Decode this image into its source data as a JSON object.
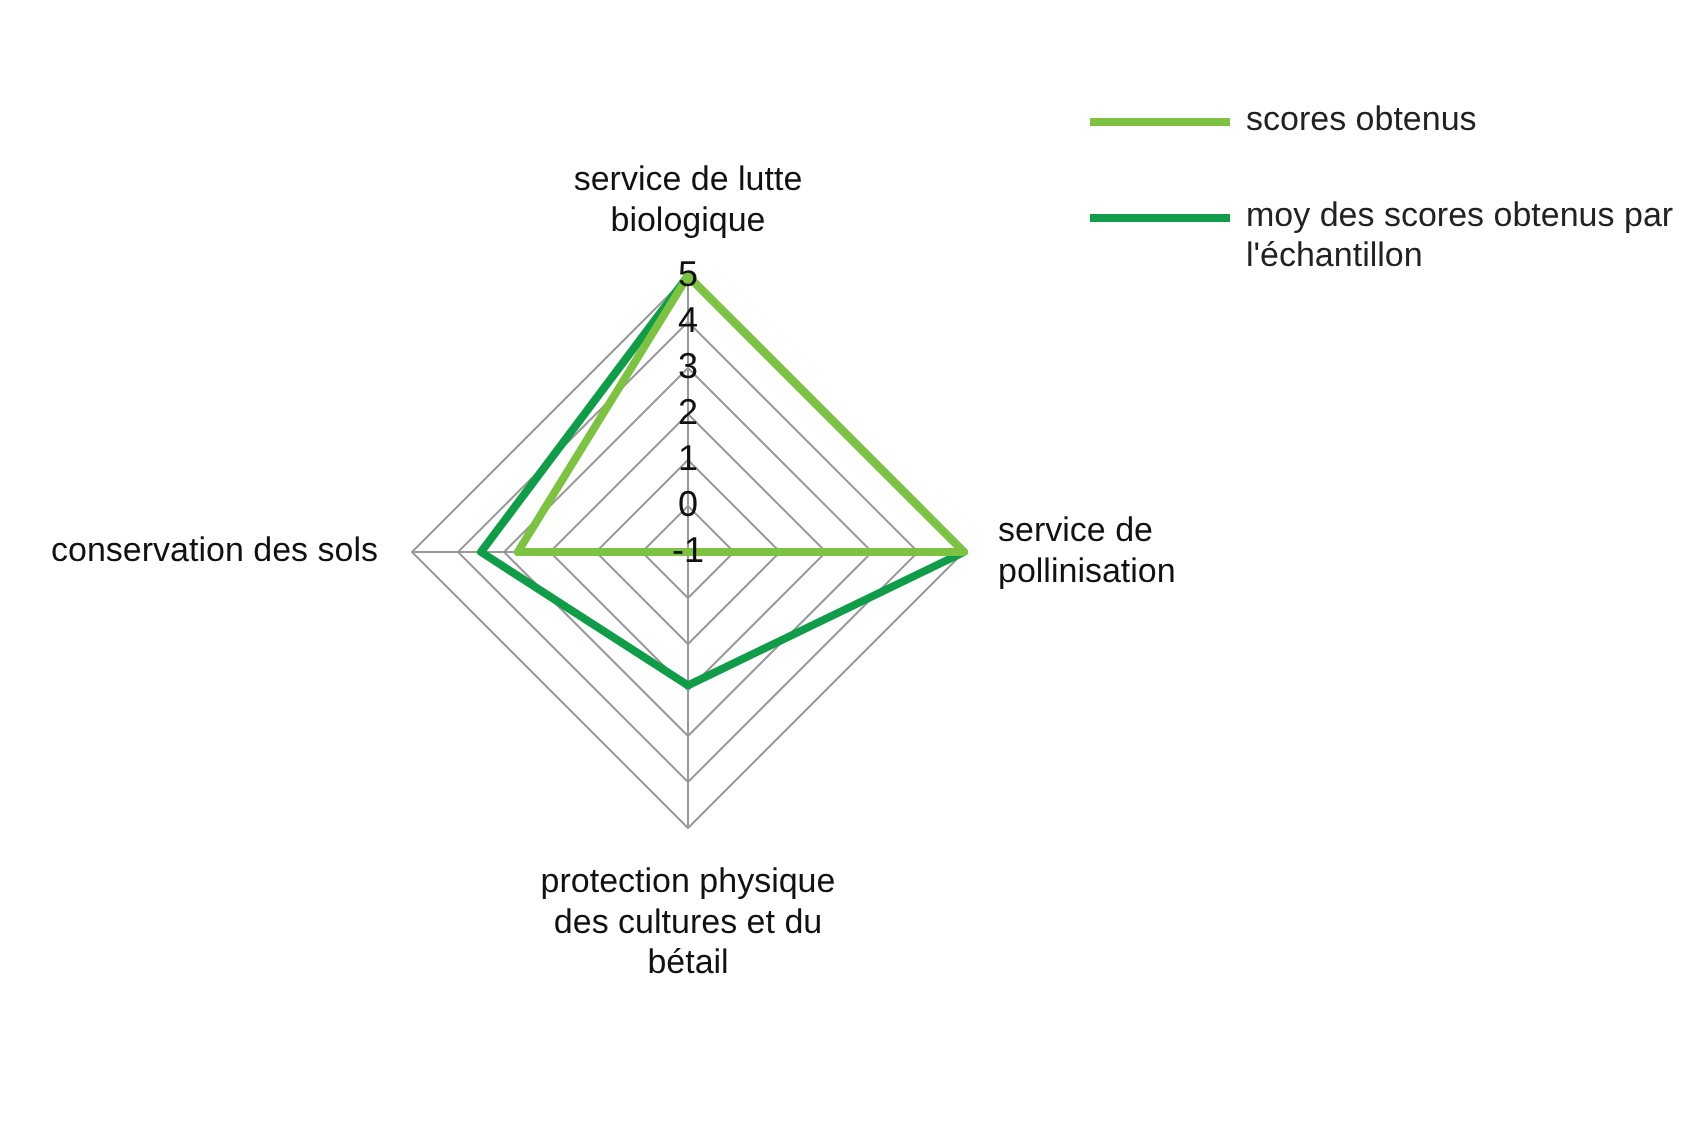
{
  "chart_data": {
    "type": "radar",
    "categories": [
      "service de lutte biologique",
      "service de pollinisation",
      "protection physique des cultures et du bétail",
      "conservation des sols"
    ],
    "series": [
      {
        "name": "scores obtenus",
        "color": "#7dc242",
        "values": [
          5,
          5,
          -1,
          2.7
        ]
      },
      {
        "name": "moy des scores obtenus par l'échantillon",
        "color": "#109c48",
        "values": [
          5,
          5,
          1.9,
          3.5
        ]
      }
    ],
    "ylim": [
      -1,
      5
    ],
    "yticks": [
      -1,
      0,
      1,
      2,
      3,
      4,
      5
    ],
    "grid": true,
    "legend": "top right",
    "marker": "none"
  }
}
